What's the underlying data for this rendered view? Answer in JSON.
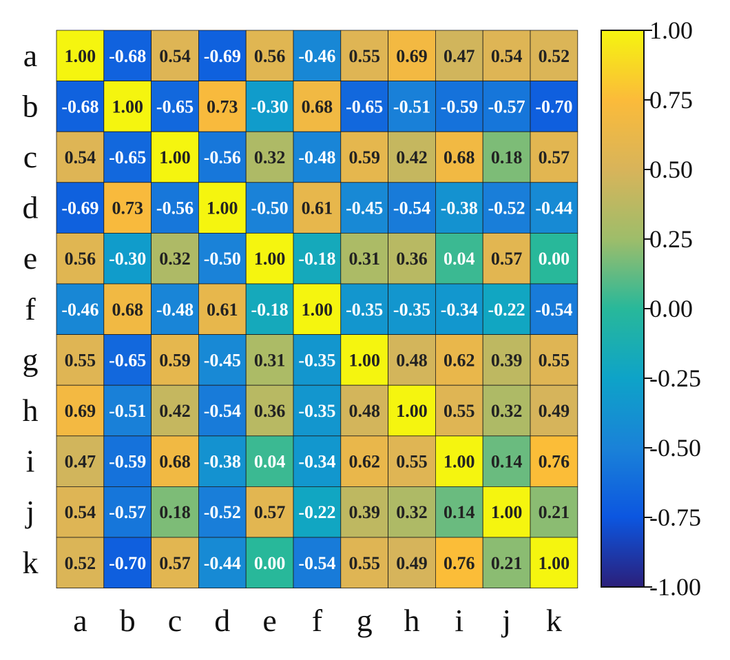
{
  "chart_data": {
    "type": "heatmap",
    "title": "",
    "xlabel": "",
    "ylabel": "",
    "row_labels": [
      "a",
      "b",
      "c",
      "d",
      "e",
      "f",
      "g",
      "h",
      "i",
      "j",
      "k"
    ],
    "col_labels": [
      "a",
      "b",
      "c",
      "d",
      "e",
      "f",
      "g",
      "h",
      "i",
      "j",
      "k"
    ],
    "values": [
      [
        1.0,
        -0.68,
        0.54,
        -0.69,
        0.56,
        -0.46,
        0.55,
        0.69,
        0.47,
        0.54,
        0.52
      ],
      [
        -0.68,
        1.0,
        -0.65,
        0.73,
        -0.3,
        0.68,
        -0.65,
        -0.51,
        -0.59,
        -0.57,
        -0.7
      ],
      [
        0.54,
        -0.65,
        1.0,
        -0.56,
        0.32,
        -0.48,
        0.59,
        0.42,
        0.68,
        0.18,
        0.57
      ],
      [
        -0.69,
        0.73,
        -0.56,
        1.0,
        -0.5,
        0.61,
        -0.45,
        -0.54,
        -0.38,
        -0.52,
        -0.44
      ],
      [
        0.56,
        -0.3,
        0.32,
        -0.5,
        1.0,
        -0.18,
        0.31,
        0.36,
        0.04,
        0.57,
        0.0
      ],
      [
        -0.46,
        0.68,
        -0.48,
        0.61,
        -0.18,
        1.0,
        -0.35,
        -0.35,
        -0.34,
        -0.22,
        -0.54
      ],
      [
        0.55,
        -0.65,
        0.59,
        -0.45,
        0.31,
        -0.35,
        1.0,
        0.48,
        0.62,
        0.39,
        0.55
      ],
      [
        0.69,
        -0.51,
        0.42,
        -0.54,
        0.36,
        -0.35,
        0.48,
        1.0,
        0.55,
        0.32,
        0.49
      ],
      [
        0.47,
        -0.59,
        0.68,
        -0.38,
        0.04,
        -0.34,
        0.62,
        0.55,
        1.0,
        0.14,
        0.76
      ],
      [
        0.54,
        -0.57,
        0.18,
        -0.52,
        0.57,
        -0.22,
        0.39,
        0.32,
        0.14,
        1.0,
        0.21
      ],
      [
        0.52,
        -0.7,
        0.57,
        -0.44,
        0.0,
        -0.54,
        0.55,
        0.49,
        0.76,
        0.21,
        1.0
      ]
    ],
    "colorbar": {
      "range": [
        -1.0,
        1.0
      ],
      "ticks": [
        1.0,
        0.75,
        0.5,
        0.25,
        0.0,
        -0.25,
        -0.5,
        -0.75,
        -1.0
      ],
      "tick_labels": [
        "1.00",
        "0.75",
        "0.50",
        "0.25",
        "0.00",
        "-0.25",
        "-0.50",
        "-0.75",
        "-1.00"
      ],
      "colormap": [
        {
          "v": -1.0,
          "color": "#2b1f7a"
        },
        {
          "v": -0.75,
          "color": "#0c56e0"
        },
        {
          "v": -0.5,
          "color": "#1a82d8"
        },
        {
          "v": -0.25,
          "color": "#0ea3c8"
        },
        {
          "v": 0.0,
          "color": "#28b89a"
        },
        {
          "v": 0.25,
          "color": "#9ebd6a"
        },
        {
          "v": 0.5,
          "color": "#d8b45a"
        },
        {
          "v": 0.75,
          "color": "#fbbb3a"
        },
        {
          "v": 1.0,
          "color": "#f5f50f"
        }
      ]
    },
    "grid": true,
    "legend": "right",
    "text_colors": {
      "positive": "#222222",
      "negative": "#ffffff",
      "near_zero": "#ffffff"
    }
  }
}
